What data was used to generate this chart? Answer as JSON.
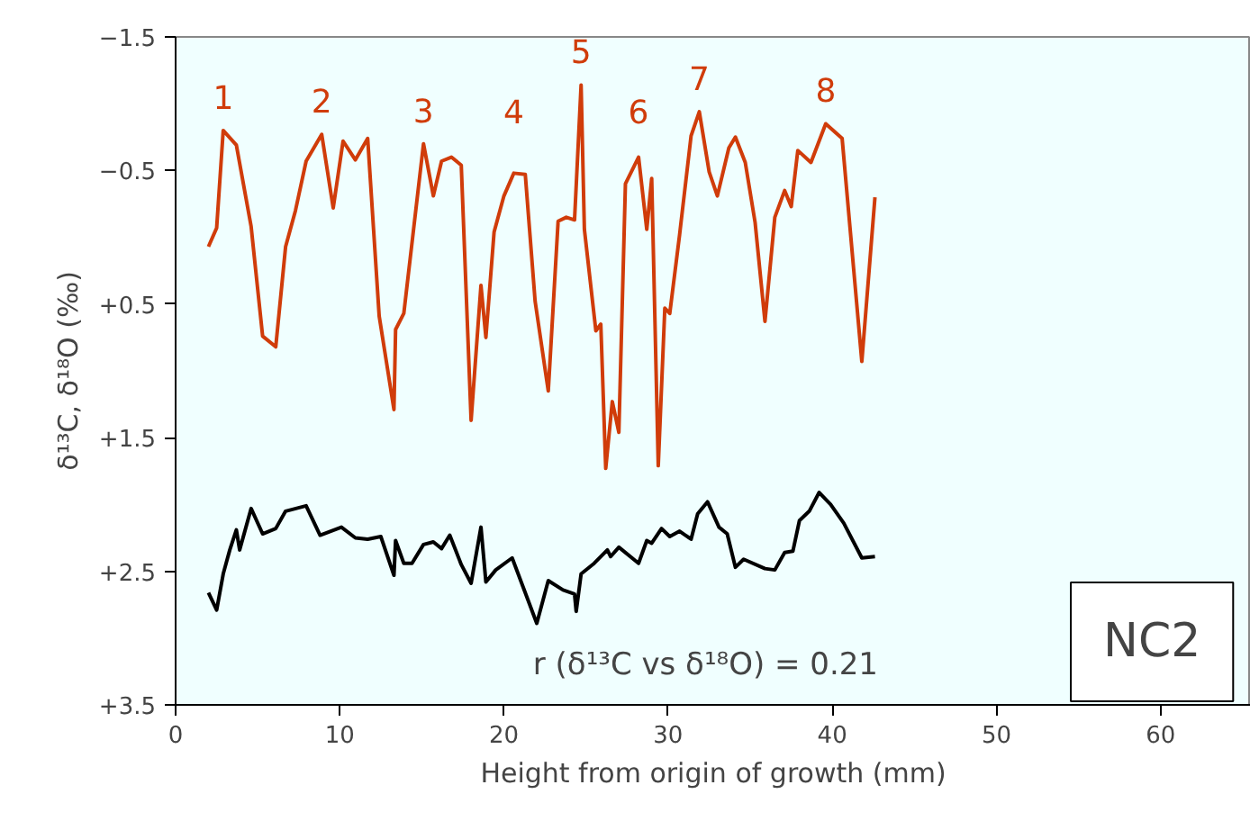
{
  "chart_data": {
    "type": "line",
    "xlabel": "Height from origin of growth (mm)",
    "ylabel": "δ¹³C, δ¹⁸O (‰)",
    "xlim": [
      0,
      65.5
    ],
    "xticks": [
      0,
      10,
      20,
      30,
      40,
      50,
      60
    ],
    "ylim": [
      3.5,
      -1.5
    ],
    "yticks": [
      -1.5,
      -0.5,
      {
        "value": 0.5,
        "label": "+0.5"
      },
      {
        "value": 1.5,
        "label": "+1.5"
      },
      {
        "value": 2.5,
        "label": "+2.5"
      },
      {
        "value": 3.5,
        "label": "+3.5"
      }
    ],
    "grid": false,
    "marker": "none",
    "line_style": "solid",
    "series": [
      {
        "color": "#d03c0a",
        "x": [
          2.0,
          2.5,
          2.9,
          3.7,
          4.6,
          5.3,
          6.1,
          6.7,
          7.3,
          7.95,
          8.9,
          9.6,
          10.2,
          10.95,
          11.7,
          12.4,
          13.3,
          13.4,
          13.9,
          15.1,
          15.7,
          16.2,
          16.8,
          17.4,
          18.0,
          18.6,
          18.9,
          19.4,
          20.0,
          20.6,
          21.3,
          21.9,
          22.7,
          23.3,
          23.8,
          24.3,
          24.7,
          24.9,
          25.6,
          25.9,
          26.2,
          26.6,
          27.0,
          27.4,
          28.2,
          28.7,
          29.0,
          29.4,
          29.8,
          30.1,
          30.7,
          31.4,
          31.9,
          32.5,
          33.0,
          33.7,
          34.1,
          34.7,
          35.3,
          35.9,
          36.5,
          37.1,
          37.5,
          37.9,
          38.7,
          39.6,
          40.6,
          41.8,
          42.6
        ],
        "values": [
          0.07,
          -0.07,
          -0.8,
          -0.69,
          -0.08,
          0.74,
          0.82,
          0.07,
          -0.2,
          -0.57,
          -0.77,
          -0.22,
          -0.72,
          -0.58,
          -0.74,
          0.59,
          1.29,
          0.69,
          0.57,
          -0.7,
          -0.31,
          -0.57,
          -0.6,
          -0.54,
          1.37,
          0.36,
          0.75,
          -0.04,
          -0.31,
          -0.48,
          -0.47,
          0.48,
          1.15,
          -0.12,
          -0.15,
          -0.13,
          -1.14,
          -0.06,
          0.7,
          0.65,
          1.73,
          1.23,
          1.46,
          -0.4,
          -0.6,
          -0.06,
          -0.44,
          1.71,
          0.53,
          0.57,
          -0.02,
          -0.76,
          -0.94,
          -0.49,
          -0.31,
          -0.67,
          -0.75,
          -0.56,
          -0.11,
          0.63,
          -0.15,
          -0.35,
          -0.23,
          -0.65,
          -0.56,
          -0.85,
          -0.74,
          0.93,
          -0.3
        ]
      },
      {
        "color": "#000000",
        "x": [
          2.0,
          2.5,
          2.9,
          3.3,
          3.7,
          3.9,
          4.6,
          5.3,
          6.1,
          6.7,
          7.95,
          8.8,
          10.1,
          10.95,
          11.7,
          12.5,
          13.3,
          13.4,
          13.9,
          14.4,
          15.1,
          15.7,
          16.2,
          16.7,
          17.4,
          18.0,
          18.6,
          18.9,
          19.5,
          20.5,
          22.0,
          22.7,
          23.6,
          24.3,
          24.4,
          24.7,
          25.5,
          26.3,
          26.5,
          27.0,
          28.2,
          28.7,
          29.0,
          29.6,
          30.1,
          30.7,
          31.4,
          31.8,
          32.4,
          33.1,
          33.6,
          34.1,
          34.6,
          35.9,
          36.5,
          37.1,
          37.6,
          38.0,
          38.6,
          39.2,
          39.9,
          40.7,
          41.8,
          42.6
        ],
        "values": [
          2.66,
          2.79,
          2.52,
          2.34,
          2.19,
          2.34,
          2.03,
          2.22,
          2.18,
          2.05,
          2.01,
          2.23,
          2.17,
          2.25,
          2.26,
          2.24,
          2.53,
          2.27,
          2.44,
          2.44,
          2.3,
          2.28,
          2.33,
          2.23,
          2.45,
          2.59,
          2.17,
          2.58,
          2.49,
          2.4,
          2.89,
          2.57,
          2.64,
          2.67,
          2.8,
          2.52,
          2.44,
          2.34,
          2.39,
          2.32,
          2.44,
          2.27,
          2.29,
          2.18,
          2.24,
          2.2,
          2.26,
          2.07,
          1.98,
          2.17,
          2.22,
          2.47,
          2.41,
          2.48,
          2.49,
          2.36,
          2.35,
          2.12,
          2.05,
          1.91,
          2.0,
          2.14,
          2.4,
          2.39
        ]
      }
    ],
    "annotations": [
      {
        "text": "1",
        "x": 2.9,
        "y": -0.8
      },
      {
        "text": "2",
        "x": 8.9,
        "y": -0.77
      },
      {
        "text": "3",
        "x": 15.1,
        "y": -0.7
      },
      {
        "text": "4",
        "x": 20.6,
        "y": -0.48
      },
      {
        "text": "5",
        "x": 24.7,
        "y": -1.14
      },
      {
        "text": "6",
        "x": 28.2,
        "y": -0.6
      },
      {
        "text": "7",
        "x": 31.9,
        "y": -0.94
      },
      {
        "text": "8",
        "x": 39.6,
        "y": -0.85
      },
      "r (δ¹³C vs δ¹⁸O) = 0.21",
      "NC2"
    ]
  }
}
